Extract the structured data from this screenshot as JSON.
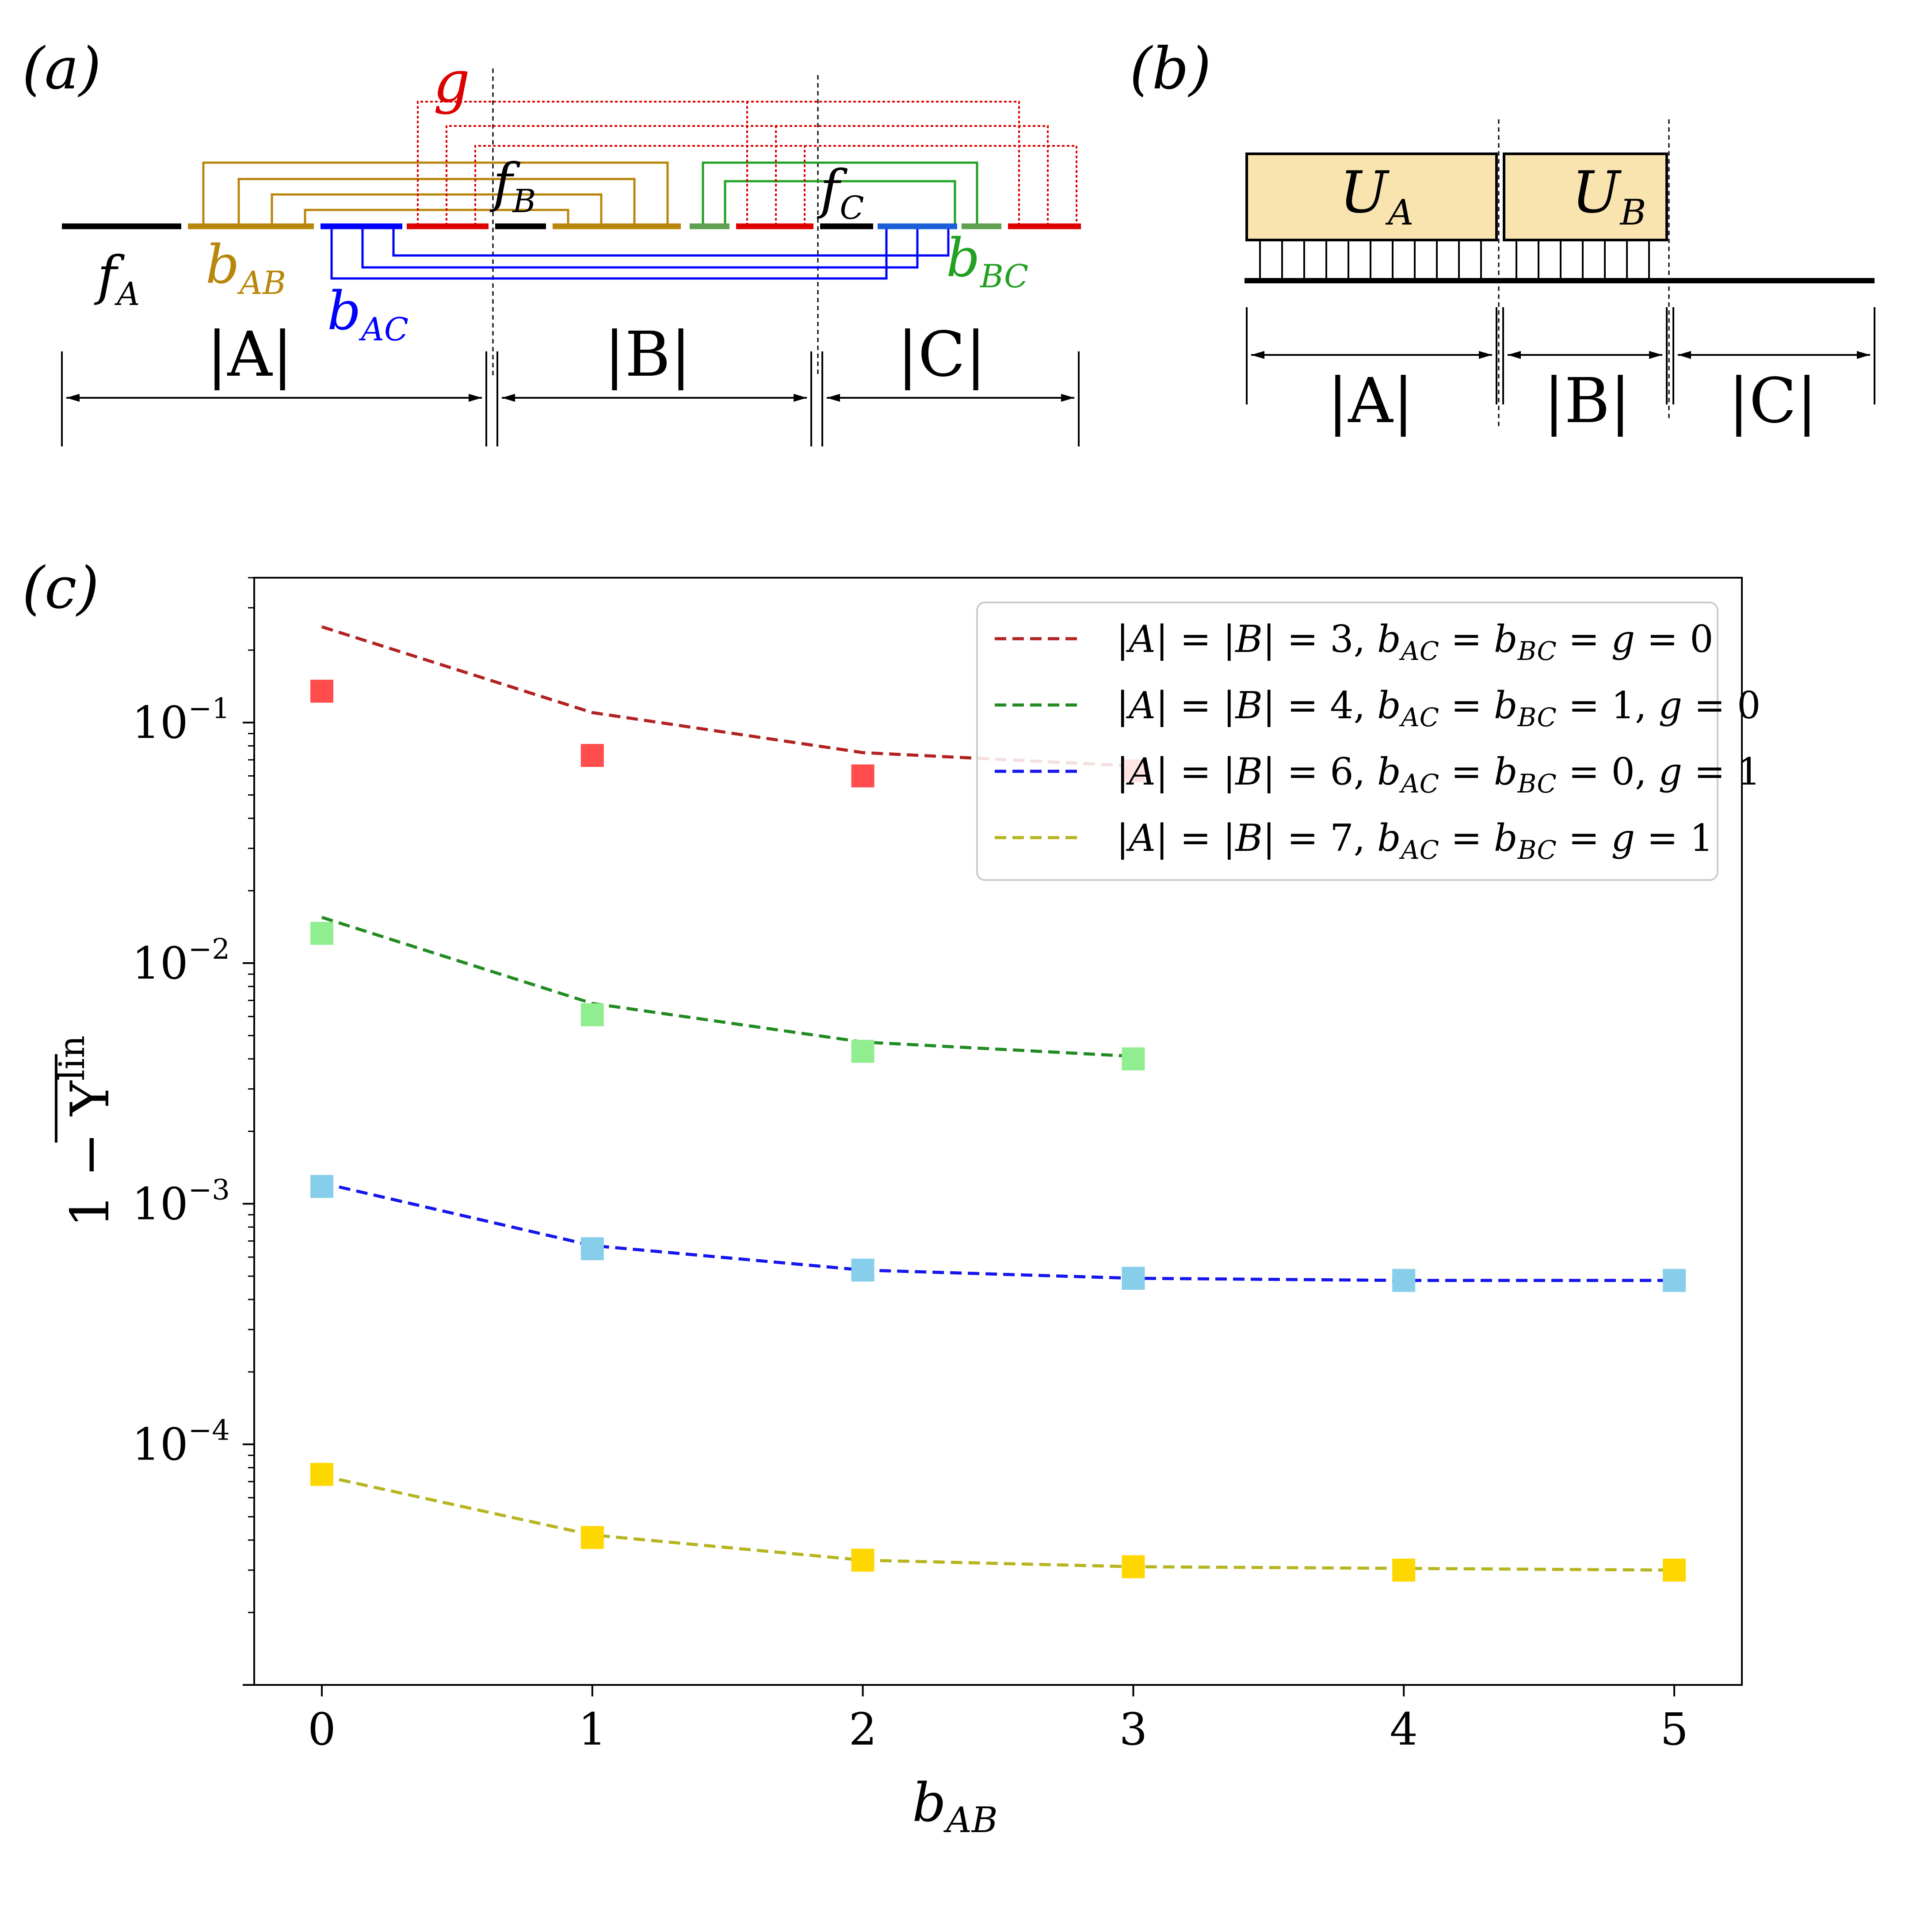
{
  "panels": {
    "a": {
      "label": "(a)",
      "segments": {
        "f_A": "f",
        "f_A_sub": "A",
        "b_AB": "b",
        "b_AB_sub": "AB",
        "b_AC": "b",
        "b_AC_sub": "AC",
        "b_BC": "b",
        "b_BC_sub": "BC",
        "f_B": "f",
        "f_B_sub": "B",
        "f_C": "f",
        "f_C_sub": "C",
        "g": "g"
      },
      "extents": [
        "|A|",
        "|B|",
        "|C|"
      ],
      "colors": {
        "f": "#000000",
        "bAB": "#b8860b",
        "bAC": "#0000ff",
        "bBC": "#22a022",
        "g": "#dd0000"
      }
    },
    "b": {
      "label": "(b)",
      "blocks": [
        {
          "name": "U",
          "sub": "A"
        },
        {
          "name": "U",
          "sub": "B"
        }
      ],
      "extents": [
        "|A|",
        "|B|",
        "|C|"
      ],
      "block_color": "#f9e4b0"
    },
    "c": {
      "label": "(c)"
    }
  },
  "chart_data": {
    "type": "line",
    "yscale": "log",
    "xlabel": "b",
    "xlabel_sub": "AB",
    "ylabel": "1 − Y",
    "ylabel_sup": "lin",
    "xlim": [
      -0.25,
      5.25
    ],
    "ylim": [
      1e-05,
      0.4
    ],
    "xticks": [
      0,
      1,
      2,
      3,
      4,
      5
    ],
    "xtick_labels": [
      "0",
      "1",
      "2",
      "3",
      "4",
      "5"
    ],
    "yticks": [
      0.0001,
      0.001,
      0.01,
      0.1
    ],
    "ytick_base": "10",
    "ytick_exps": [
      "−4",
      "−3",
      "−2",
      "−1"
    ],
    "legend_position": "top-right",
    "series": [
      {
        "name": "|A| = |B| = 3, b_AC = b_BC = g = 0",
        "legend": [
          "|A|",
          " = ",
          "|B|",
          " = 3, ",
          "b",
          "AC",
          " = ",
          "b",
          "BC",
          " = ",
          "g",
          " = 0"
        ],
        "line_color": "#b22222",
        "marker_color": "#ff4d4d",
        "x": [
          0,
          1,
          2,
          3
        ],
        "line": [
          0.25,
          0.11,
          0.075,
          0.066
        ],
        "markers": [
          0.135,
          0.073,
          0.06,
          0.063
        ]
      },
      {
        "name": "|A| = |B| = 4, b_AC = b_BC = 1, g = 0",
        "legend": [
          "|A|",
          " = ",
          "|B|",
          " = 4, ",
          "b",
          "AC",
          " = ",
          "b",
          "BC",
          " = 1, ",
          "g",
          " = 0"
        ],
        "line_color": "#228b22",
        "marker_color": "#90ee90",
        "x": [
          0,
          1,
          2,
          3
        ],
        "line": [
          0.0155,
          0.0068,
          0.0047,
          0.0041
        ],
        "markers": [
          0.0133,
          0.0061,
          0.0043,
          0.004
        ]
      },
      {
        "name": "|A| = |B| = 6, b_AC = b_BC = 0, g = 1",
        "legend": [
          "|A|",
          " = ",
          "|B|",
          " = 6, ",
          "b",
          "AC",
          " = ",
          "b",
          "BC",
          " = 0, ",
          "g",
          " = 1"
        ],
        "line_color": "#1515ee",
        "marker_color": "#87ceeb",
        "x": [
          0,
          1,
          2,
          3,
          4,
          5
        ],
        "line": [
          0.00122,
          0.00067,
          0.00053,
          0.00049,
          0.00048,
          0.00048
        ],
        "markers": [
          0.00118,
          0.00065,
          0.00053,
          0.00049,
          0.00048,
          0.00048
        ]
      },
      {
        "name": "|A| = |B| = 7, b_AC = b_BC = g = 1",
        "legend": [
          "|A|",
          " = ",
          "|B|",
          " = 7, ",
          "b",
          "AC",
          " = ",
          "b",
          "BC",
          " = ",
          "g",
          " = 1"
        ],
        "line_color": "#b5b520",
        "marker_color": "#ffd700",
        "x": [
          0,
          1,
          2,
          3,
          4,
          5
        ],
        "line": [
          7.4e-05,
          4.2e-05,
          3.3e-05,
          3.1e-05,
          3.05e-05,
          3e-05
        ],
        "markers": [
          7.5e-05,
          4.1e-05,
          3.3e-05,
          3.1e-05,
          3e-05,
          3e-05
        ]
      }
    ]
  }
}
